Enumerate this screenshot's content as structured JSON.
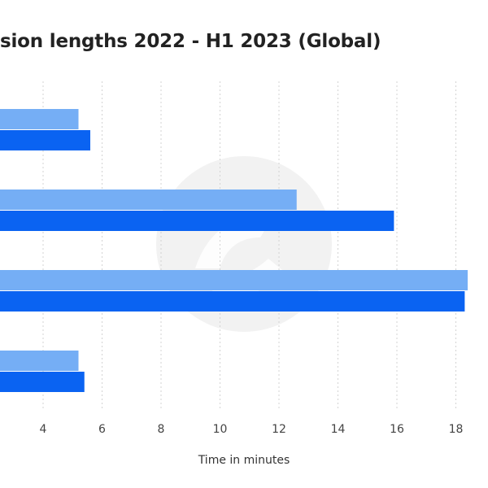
{
  "chart_data": {
    "type": "bar",
    "orientation": "horizontal",
    "title": "sion lengths 2022 - H1 2023 (Global)",
    "xlabel": "Time in minutes",
    "ylabel": "",
    "xlim": [
      1.5,
      19
    ],
    "xticks": [
      4,
      6,
      8,
      10,
      12,
      14,
      16,
      18
    ],
    "grid": "vertical dashed",
    "categories": [
      "",
      "",
      "",
      ""
    ],
    "series": [
      {
        "values": [
          5.2,
          12.6,
          18.4,
          5.2
        ],
        "color": "#75aef5"
      },
      {
        "values": [
          5.6,
          15.9,
          18.3,
          5.4
        ],
        "color": "#0a63f2"
      }
    ]
  },
  "colors": {
    "background": "#ffffff",
    "grid": "#d3d3d3",
    "watermark": "#f2f2f2"
  }
}
